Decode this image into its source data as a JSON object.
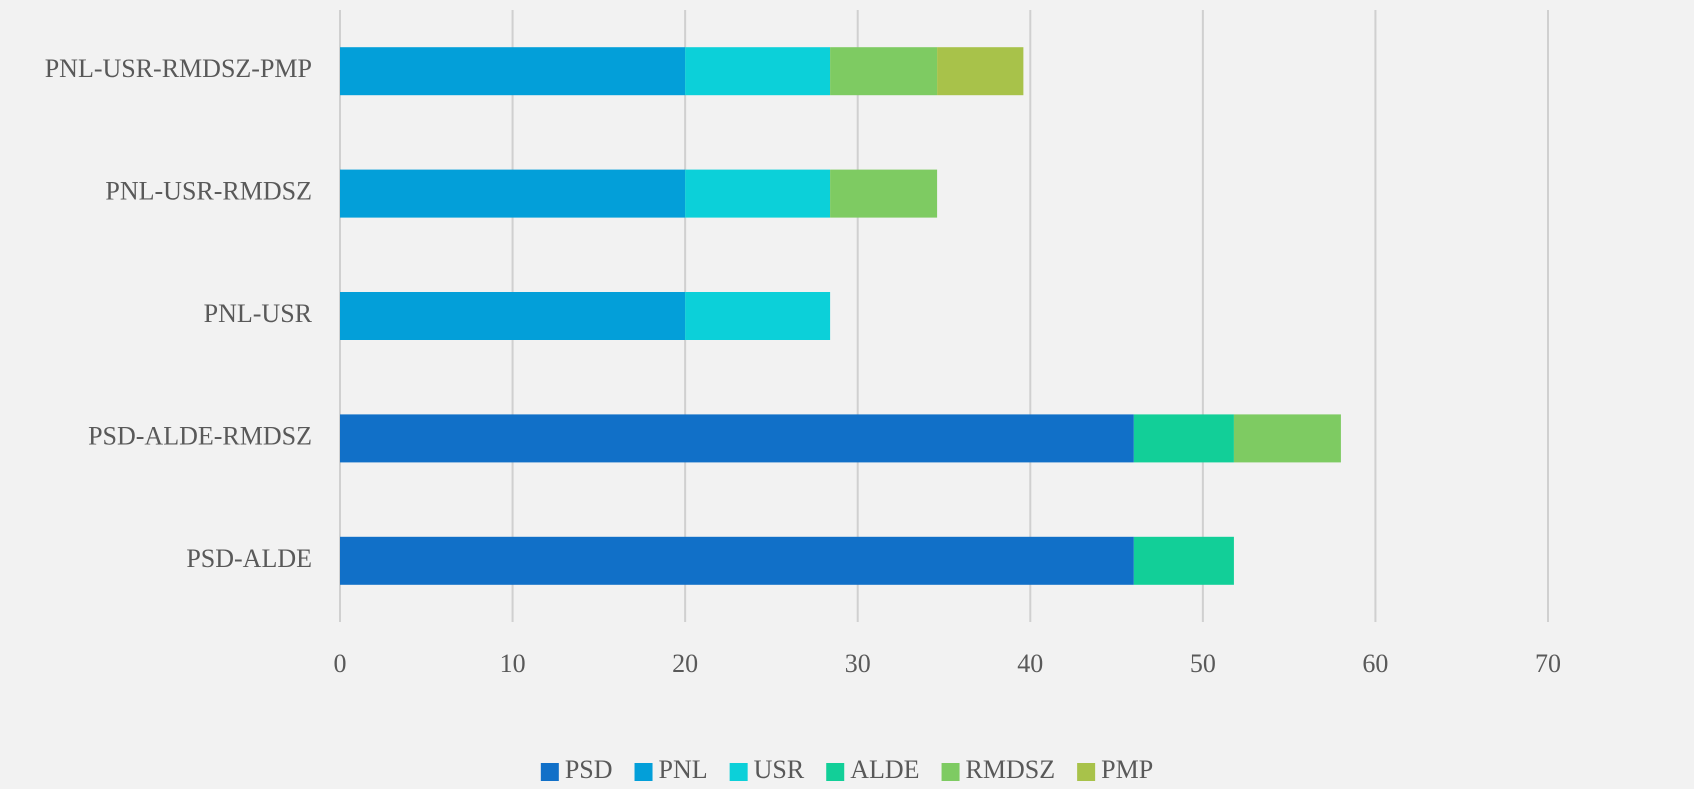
{
  "chart_data": {
    "type": "stacked-barh",
    "categories": [
      "PSD-ALDE",
      "PSD-ALDE-RMDSZ",
      "PNL-USR",
      "PNL-USR-RMDSZ",
      "PNL-USR-RMDSZ-PMP"
    ],
    "series": [
      {
        "name": "PSD",
        "color": "#1170c8",
        "values": [
          46,
          46,
          null,
          null,
          null
        ]
      },
      {
        "name": "PNL",
        "color": "#039fd9",
        "values": [
          null,
          null,
          20,
          20,
          20
        ]
      },
      {
        "name": "USR",
        "color": "#0cd0d9",
        "values": [
          null,
          null,
          8.4,
          8.4,
          8.4
        ]
      },
      {
        "name": "ALDE",
        "color": "#12cf98",
        "values": [
          5.8,
          5.8,
          null,
          null,
          null
        ]
      },
      {
        "name": "RMDSZ",
        "color": "#7ecb62",
        "values": [
          null,
          6.2,
          null,
          6.2,
          6.2
        ]
      },
      {
        "name": "PMP",
        "color": "#a8c24a",
        "values": [
          null,
          null,
          null,
          null,
          5
        ]
      }
    ],
    "xlim": [
      0,
      70
    ],
    "xticks": [
      0,
      10,
      20,
      30,
      40,
      50,
      60,
      70
    ],
    "grid": true,
    "legend": "bottom"
  }
}
